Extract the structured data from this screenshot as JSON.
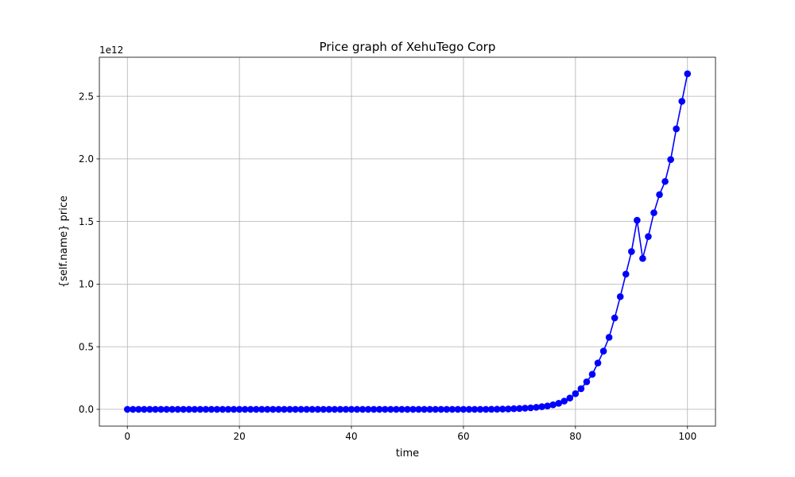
{
  "chart_data": {
    "type": "line",
    "title": "Price graph of XehuTego Corp",
    "xlabel": "time",
    "ylabel": "{self.name} price",
    "y_scale_label": "1e12",
    "y_multiplier": 1000000000000.0,
    "xlim": [
      -5,
      105
    ],
    "ylim": [
      -0.134,
      2.812
    ],
    "x_ticks": [
      0,
      20,
      40,
      60,
      80,
      100
    ],
    "x_tick_labels": [
      "0",
      "20",
      "40",
      "60",
      "80",
      "100"
    ],
    "y_ticks": [
      0.0,
      0.5,
      1.0,
      1.5,
      2.0,
      2.5
    ],
    "y_tick_labels": [
      "0.0",
      "0.5",
      "1.0",
      "1.5",
      "2.0",
      "2.5"
    ],
    "grid": true,
    "legend": "none",
    "series": [
      {
        "color": "#0000ff",
        "marker": "circle",
        "x": [
          0,
          1,
          2,
          3,
          4,
          5,
          6,
          7,
          8,
          9,
          10,
          11,
          12,
          13,
          14,
          15,
          16,
          17,
          18,
          19,
          20,
          21,
          22,
          23,
          24,
          25,
          26,
          27,
          28,
          29,
          30,
          31,
          32,
          33,
          34,
          35,
          36,
          37,
          38,
          39,
          40,
          41,
          42,
          43,
          44,
          45,
          46,
          47,
          48,
          49,
          50,
          51,
          52,
          53,
          54,
          55,
          56,
          57,
          58,
          59,
          60,
          61,
          62,
          63,
          64,
          65,
          66,
          67,
          68,
          69,
          70,
          71,
          72,
          73,
          74,
          75,
          76,
          77,
          78,
          79,
          80,
          81,
          82,
          83,
          84,
          85,
          86,
          87,
          88,
          89,
          90,
          91,
          92,
          93,
          94,
          95,
          96,
          97,
          98,
          99,
          100
        ],
        "y": [
          0,
          0,
          0,
          0,
          0,
          0,
          0,
          0,
          0,
          0,
          0,
          0,
          0,
          0,
          0,
          0,
          0,
          0,
          0,
          0,
          0,
          0,
          0,
          0,
          0,
          0,
          0,
          0,
          0,
          0,
          0,
          0,
          0,
          0,
          0,
          0,
          0,
          0,
          0,
          0,
          0,
          0,
          0,
          0,
          0,
          0,
          0,
          0,
          0,
          0,
          0,
          0,
          0,
          0,
          0,
          0,
          0,
          0,
          0,
          0,
          0,
          0,
          0,
          0,
          0,
          0.0005,
          0.001,
          0.002,
          0.003,
          0.005,
          0.007,
          0.009,
          0.012,
          0.016,
          0.021,
          0.027,
          0.036,
          0.048,
          0.066,
          0.09,
          0.125,
          0.165,
          0.22,
          0.28,
          0.37,
          0.465,
          0.575,
          0.73,
          0.9,
          1.08,
          1.26,
          1.51,
          1.205,
          1.38,
          1.57,
          1.715,
          1.82,
          1.995,
          2.24,
          2.46,
          2.68
        ]
      }
    ]
  }
}
